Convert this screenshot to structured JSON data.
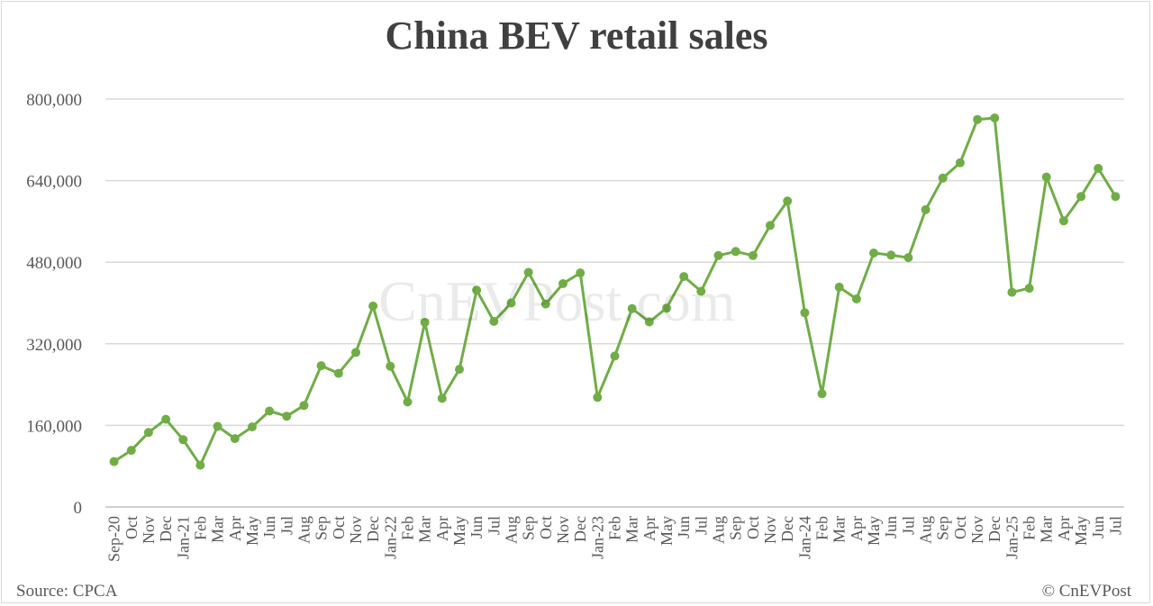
{
  "chart_data": {
    "type": "line",
    "title": "China BEV retail sales",
    "x": [
      "Sep-20",
      "Oct",
      "Nov",
      "Dec",
      "Jan-21",
      "Feb",
      "Mar",
      "Apr",
      "May",
      "Jun",
      "Jul",
      "Aug",
      "Sep",
      "Oct",
      "Nov",
      "Dec",
      "Jan-22",
      "Feb",
      "Mar",
      "Apr",
      "May",
      "Jun",
      "Jul",
      "Aug",
      "Sep",
      "Oct",
      "Nov",
      "Dec",
      "Jan-23",
      "Feb",
      "Mar",
      "Apr",
      "May",
      "Jun",
      "Jul",
      "Aug",
      "Sep",
      "Oct",
      "Nov",
      "Dec",
      "Jan-24",
      "Feb",
      "Mar",
      "Apr",
      "May",
      "Jun",
      "Jul",
      "Aug",
      "Sep",
      "Oct",
      "Nov",
      "Dec",
      "Jan-25",
      "Feb",
      "Mar",
      "Apr",
      "May",
      "Jun",
      "Jul"
    ],
    "series": [
      {
        "name": "",
        "values": [
          89000,
          111000,
          146000,
          172000,
          132000,
          82000,
          158000,
          134000,
          157000,
          188000,
          178000,
          199000,
          277000,
          262000,
          303000,
          394000,
          276000,
          206000,
          362000,
          213000,
          270000,
          425000,
          364000,
          400000,
          460000,
          398000,
          438000,
          459000,
          215000,
          296000,
          389000,
          363000,
          390000,
          452000,
          423000,
          493000,
          501000,
          493000,
          552000,
          600000,
          381000,
          222000,
          431000,
          408000,
          498000,
          494000,
          489000,
          583000,
          645000,
          675000,
          760000,
          763000,
          421000,
          429000,
          647000,
          561000,
          609000,
          664000,
          609000
        ]
      }
    ],
    "ylim": [
      0,
      800000
    ],
    "yticks": [
      0,
      160000,
      320000,
      480000,
      640000,
      800000
    ],
    "grid": true,
    "line_color": "#70ad47",
    "grid_color": "#d9d9d9"
  },
  "watermark": "CnEVPost.com",
  "source": "Source: CPCA",
  "copyright": "© CnEVPost"
}
